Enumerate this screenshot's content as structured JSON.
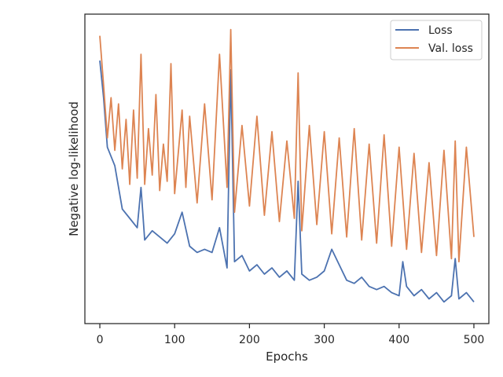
{
  "chart_data": {
    "type": "line",
    "xlabel": "Epochs",
    "ylabel": "Negative log-likelihood",
    "xlim": [
      -20,
      520
    ],
    "ylim": [
      0.0,
      1.0
    ],
    "y_tick_labels_shown": false,
    "x_ticks": [
      {
        "value": 0,
        "label": "0"
      },
      {
        "value": 100,
        "label": "100"
      },
      {
        "value": 200,
        "label": "200"
      },
      {
        "value": 300,
        "label": "300"
      },
      {
        "value": 400,
        "label": "400"
      },
      {
        "value": 500,
        "label": "500"
      }
    ],
    "grid": false,
    "legend_position": "top-right",
    "series": [
      {
        "name": "Loss",
        "color": "#4c72b0",
        "x": [
          0,
          5,
          10,
          20,
          30,
          40,
          50,
          55,
          60,
          70,
          80,
          90,
          100,
          110,
          120,
          130,
          140,
          150,
          160,
          170,
          175,
          180,
          190,
          200,
          210,
          220,
          230,
          240,
          250,
          260,
          265,
          270,
          280,
          290,
          300,
          310,
          320,
          330,
          340,
          350,
          360,
          370,
          380,
          390,
          400,
          405,
          410,
          420,
          430,
          440,
          450,
          460,
          470,
          475,
          480,
          490,
          500
        ],
        "values": [
          0.85,
          0.73,
          0.57,
          0.51,
          0.37,
          0.34,
          0.31,
          0.44,
          0.27,
          0.3,
          0.28,
          0.26,
          0.29,
          0.36,
          0.25,
          0.23,
          0.24,
          0.23,
          0.31,
          0.18,
          0.82,
          0.2,
          0.22,
          0.17,
          0.19,
          0.16,
          0.18,
          0.15,
          0.17,
          0.14,
          0.46,
          0.16,
          0.14,
          0.15,
          0.17,
          0.24,
          0.19,
          0.14,
          0.13,
          0.15,
          0.12,
          0.11,
          0.12,
          0.1,
          0.09,
          0.2,
          0.12,
          0.09,
          0.11,
          0.08,
          0.1,
          0.07,
          0.09,
          0.21,
          0.08,
          0.1,
          0.07
        ]
      },
      {
        "name": "Val. loss",
        "color": "#dd8452",
        "x": [
          0,
          5,
          10,
          15,
          20,
          25,
          30,
          35,
          40,
          45,
          50,
          55,
          60,
          65,
          70,
          75,
          80,
          85,
          90,
          95,
          100,
          110,
          115,
          120,
          130,
          140,
          150,
          160,
          170,
          175,
          180,
          190,
          200,
          210,
          220,
          230,
          240,
          250,
          260,
          265,
          270,
          280,
          290,
          300,
          310,
          320,
          330,
          340,
          350,
          360,
          370,
          380,
          390,
          400,
          410,
          420,
          430,
          440,
          450,
          460,
          470,
          475,
          480,
          490,
          500
        ],
        "values": [
          0.93,
          0.77,
          0.6,
          0.73,
          0.56,
          0.71,
          0.5,
          0.66,
          0.45,
          0.69,
          0.47,
          0.87,
          0.45,
          0.63,
          0.48,
          0.74,
          0.43,
          0.58,
          0.46,
          0.84,
          0.42,
          0.69,
          0.44,
          0.67,
          0.39,
          0.71,
          0.4,
          0.87,
          0.44,
          0.95,
          0.36,
          0.64,
          0.38,
          0.67,
          0.35,
          0.62,
          0.33,
          0.59,
          0.34,
          0.81,
          0.3,
          0.64,
          0.32,
          0.62,
          0.29,
          0.6,
          0.28,
          0.63,
          0.27,
          0.58,
          0.26,
          0.61,
          0.25,
          0.57,
          0.24,
          0.55,
          0.23,
          0.52,
          0.22,
          0.56,
          0.21,
          0.59,
          0.2,
          0.57,
          0.28
        ]
      }
    ]
  }
}
